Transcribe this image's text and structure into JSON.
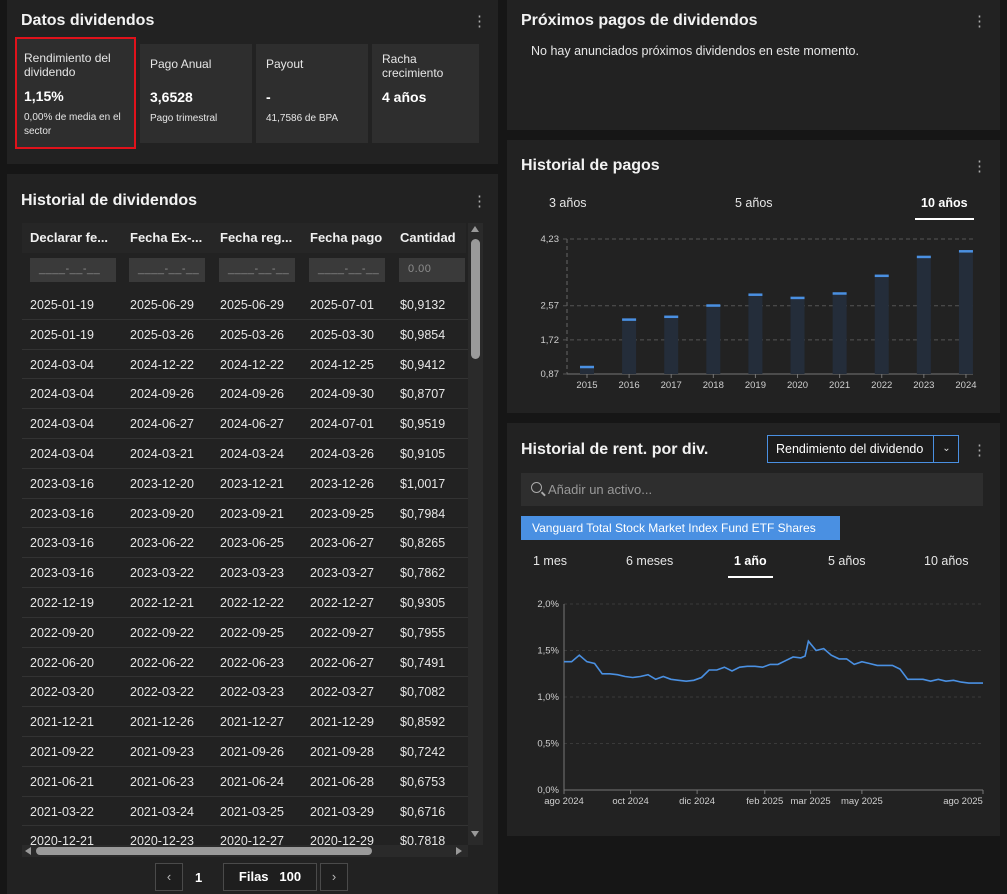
{
  "summary": {
    "title": "Datos dividendos",
    "cards": [
      {
        "label": "Rendimiento del dividendo",
        "value": "1,15%",
        "sub": "0,00% de media en el sector"
      },
      {
        "label": "Pago Anual",
        "value": "3,6528",
        "sub": "Pago trimestral"
      },
      {
        "label": "Payout",
        "value": "-",
        "sub": "41,7586 de BPA"
      },
      {
        "label": "Racha crecimiento",
        "value": "4 años",
        "sub": ""
      }
    ]
  },
  "upcoming": {
    "title": "Próximos pagos de dividendos",
    "message": "No hay anunciados próximos dividendos en este momento."
  },
  "history_table": {
    "title": "Historial de dividendos",
    "columns": [
      "Declarar fe...",
      "Fecha Ex-...",
      "Fecha reg...",
      "Fecha pago",
      "Cantidad"
    ],
    "filters": [
      "____-__-__",
      "____-__-__",
      "____-__-__",
      "____-__-__",
      "0.00"
    ],
    "rows": [
      [
        "2025-01-19",
        "2025-06-29",
        "2025-06-29",
        "2025-07-01",
        "$0,9132"
      ],
      [
        "2025-01-19",
        "2025-03-26",
        "2025-03-26",
        "2025-03-30",
        "$0,9854"
      ],
      [
        "2024-03-04",
        "2024-12-22",
        "2024-12-22",
        "2024-12-25",
        "$0,9412"
      ],
      [
        "2024-03-04",
        "2024-09-26",
        "2024-09-26",
        "2024-09-30",
        "$0,8707"
      ],
      [
        "2024-03-04",
        "2024-06-27",
        "2024-06-27",
        "2024-07-01",
        "$0,9519"
      ],
      [
        "2024-03-04",
        "2024-03-21",
        "2024-03-24",
        "2024-03-26",
        "$0,9105"
      ],
      [
        "2023-03-16",
        "2023-12-20",
        "2023-12-21",
        "2023-12-26",
        "$1,0017"
      ],
      [
        "2023-03-16",
        "2023-09-20",
        "2023-09-21",
        "2023-09-25",
        "$0,7984"
      ],
      [
        "2023-03-16",
        "2023-06-22",
        "2023-06-25",
        "2023-06-27",
        "$0,8265"
      ],
      [
        "2023-03-16",
        "2023-03-22",
        "2023-03-23",
        "2023-03-27",
        "$0,7862"
      ],
      [
        "2022-12-19",
        "2022-12-21",
        "2022-12-22",
        "2022-12-27",
        "$0,9305"
      ],
      [
        "2022-09-20",
        "2022-09-22",
        "2022-09-25",
        "2022-09-27",
        "$0,7955"
      ],
      [
        "2022-06-20",
        "2022-06-22",
        "2022-06-23",
        "2022-06-27",
        "$0,7491"
      ],
      [
        "2022-03-20",
        "2022-03-22",
        "2022-03-23",
        "2022-03-27",
        "$0,7082"
      ],
      [
        "2021-12-21",
        "2021-12-26",
        "2021-12-27",
        "2021-12-29",
        "$0,8592"
      ],
      [
        "2021-09-22",
        "2021-09-23",
        "2021-09-26",
        "2021-09-28",
        "$0,7242"
      ],
      [
        "2021-06-21",
        "2021-06-23",
        "2021-06-24",
        "2021-06-28",
        "$0,6753"
      ],
      [
        "2021-03-22",
        "2021-03-24",
        "2021-03-25",
        "2021-03-29",
        "$0,6716"
      ],
      [
        "2020-12-21",
        "2020-12-23",
        "2020-12-27",
        "2020-12-29",
        "$0,7818"
      ]
    ],
    "pagination": {
      "page": "1",
      "rows_label": "Filas",
      "rows_value": "100"
    }
  },
  "payments_history": {
    "title": "Historial de pagos",
    "tabs": [
      "3 años",
      "5 años",
      "10 años"
    ],
    "active_tab": "10 años"
  },
  "yield_history": {
    "title": "Historial de rent. por div.",
    "metric_select": "Rendimiento del dividendo",
    "search_placeholder": "Añadir un activo...",
    "asset_tag": "Vanguard Total Stock Market Index Fund ETF Shares",
    "ranges": [
      "1 mes",
      "6 meses",
      "1 año",
      "5 años",
      "10 años"
    ],
    "active_range": "1 año"
  },
  "colors": {
    "accent": "#4a90e2",
    "highlight_border": "#e0121b",
    "bar": "#242d3a"
  },
  "chart_data": [
    {
      "type": "bar",
      "title": "Historial de pagos",
      "categories": [
        "2015",
        "2016",
        "2017",
        "2018",
        "2019",
        "2020",
        "2021",
        "2022",
        "2023",
        "2024"
      ],
      "values": [
        1.05,
        2.23,
        2.3,
        2.58,
        2.85,
        2.77,
        2.88,
        3.32,
        3.79,
        3.93
      ],
      "yticks": [
        "4,23",
        "2,57",
        "1,72",
        "0,87"
      ],
      "ytick_values": [
        4.23,
        2.57,
        1.72,
        0.87
      ],
      "ylim": [
        0.87,
        4.23
      ],
      "grid": true
    },
    {
      "type": "line",
      "title": "Historial de rent. por div.",
      "series": [
        {
          "name": "Vanguard Total Stock Market Index Fund ETF Shares",
          "x": [
            "2024-08-01",
            "2024-08-08",
            "2024-08-15",
            "2024-08-22",
            "2024-08-29",
            "2024-09-05",
            "2024-09-12",
            "2024-09-19",
            "2024-09-26",
            "2024-10-03",
            "2024-10-10",
            "2024-10-17",
            "2024-10-24",
            "2024-10-31",
            "2024-11-07",
            "2024-11-14",
            "2024-11-21",
            "2024-11-28",
            "2024-12-05",
            "2024-12-12",
            "2024-12-19",
            "2024-12-26",
            "2025-01-02",
            "2025-01-09",
            "2025-01-16",
            "2025-01-23",
            "2025-01-30",
            "2025-02-06",
            "2025-02-13",
            "2025-02-20",
            "2025-02-27",
            "2025-03-06",
            "2025-03-10",
            "2025-03-13",
            "2025-03-20",
            "2025-03-27",
            "2025-04-03",
            "2025-04-10",
            "2025-04-17",
            "2025-04-24",
            "2025-05-01",
            "2025-05-08",
            "2025-05-15",
            "2025-05-22",
            "2025-05-29",
            "2025-06-05",
            "2025-06-12",
            "2025-06-19",
            "2025-06-26",
            "2025-07-03",
            "2025-07-10",
            "2025-07-17",
            "2025-07-24",
            "2025-07-31",
            "2025-08-07",
            "2025-08-14",
            "2025-08-20"
          ],
          "values": [
            1.38,
            1.38,
            1.45,
            1.38,
            1.36,
            1.25,
            1.25,
            1.24,
            1.22,
            1.21,
            1.22,
            1.24,
            1.19,
            1.22,
            1.19,
            1.18,
            1.17,
            1.18,
            1.21,
            1.29,
            1.29,
            1.32,
            1.28,
            1.32,
            1.33,
            1.33,
            1.32,
            1.35,
            1.35,
            1.39,
            1.43,
            1.42,
            1.44,
            1.6,
            1.5,
            1.52,
            1.45,
            1.41,
            1.41,
            1.35,
            1.38,
            1.36,
            1.34,
            1.34,
            1.34,
            1.3,
            1.19,
            1.19,
            1.19,
            1.17,
            1.19,
            1.17,
            1.18,
            1.16,
            1.15,
            1.15,
            1.15
          ]
        }
      ],
      "yticks": [
        "2,0%",
        "1,5%",
        "1,0%",
        "0,5%",
        "0,0%"
      ],
      "ylim": [
        0,
        2.0
      ],
      "xticks": [
        "ago 2024",
        "oct 2024",
        "dic 2024",
        "feb 2025",
        "mar 2025",
        "may 2025",
        "ago 2025"
      ],
      "grid": true
    }
  ]
}
